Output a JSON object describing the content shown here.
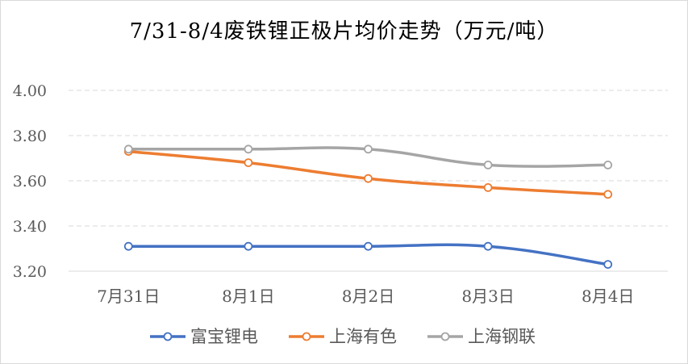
{
  "chart_data": {
    "type": "line",
    "title": "7/31-8/4废铁锂正极片均价走势（万元/吨）",
    "categories": [
      "7月31日",
      "8月1日",
      "8月2日",
      "8月3日",
      "8月4日"
    ],
    "yticks": [
      "3.20",
      "3.40",
      "3.60",
      "3.80",
      "4.00"
    ],
    "ylim": [
      3.2,
      4.0
    ],
    "grid": "horizontal dashed",
    "legend_position": "bottom",
    "series": [
      {
        "name": "富宝锂电",
        "color": "#4472c4",
        "values": [
          3.31,
          3.31,
          3.31,
          3.31,
          3.23
        ]
      },
      {
        "name": "上海有色",
        "color": "#ed7d31",
        "values": [
          3.73,
          3.68,
          3.61,
          3.57,
          3.54
        ]
      },
      {
        "name": "上海钢联",
        "color": "#a5a5a5",
        "values": [
          3.74,
          3.74,
          3.74,
          3.67,
          3.67
        ]
      }
    ]
  }
}
